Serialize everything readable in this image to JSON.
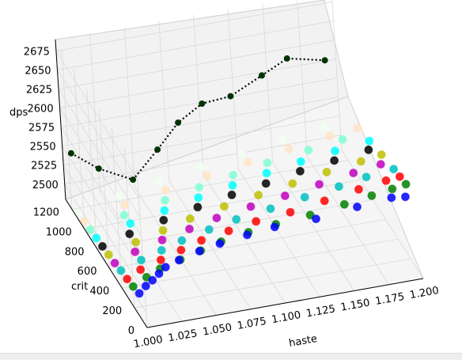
{
  "chart_data": {
    "type": "scatter",
    "projection": "3d",
    "title": "",
    "xlabel": "haste",
    "ylabel": "crit",
    "zlabel": "dps",
    "xlim": [
      1.0,
      1.2
    ],
    "ylim": [
      0,
      1300
    ],
    "zlim": [
      2480,
      2690
    ],
    "x_ticks": [
      "1.000",
      "1.025",
      "1.050",
      "1.075",
      "1.100",
      "1.125",
      "1.150",
      "1.175",
      "1.200"
    ],
    "y_ticks": [
      "0",
      "200",
      "400",
      "600",
      "800",
      "1000",
      "1200"
    ],
    "z_ticks": [
      "2500",
      "2525",
      "2550",
      "2575",
      "2600",
      "2625",
      "2650",
      "2675"
    ],
    "grid": true,
    "legend": "none",
    "colors": [
      "#0000ff",
      "#008000",
      "#ff0000",
      "#00bfbf",
      "#bf00bf",
      "#bfbf00",
      "#000000",
      "#00ffff",
      "#7fffd4",
      "#ffe4c4",
      "#f0fff0"
    ],
    "line_style": "black dotted",
    "series": [
      {
        "color": "#0000ff",
        "crit": 100,
        "haste": [
          1.0,
          1.005,
          1.01,
          1.015,
          1.02,
          1.03,
          1.045,
          1.06,
          1.08,
          1.1,
          1.13,
          1.16,
          1.185,
          1.195
        ],
        "dps": [
          2512,
          2520,
          2526,
          2533,
          2540,
          2546,
          2553,
          2558,
          2563,
          2567,
          2568,
          2574,
          2578,
          2576
        ]
      },
      {
        "color": "#008000",
        "crit": 200,
        "haste": [
          1.0,
          1.01,
          1.02,
          1.035,
          1.05,
          1.065,
          1.085,
          1.105,
          1.13,
          1.155,
          1.175,
          1.19,
          1.2
        ],
        "dps": [
          2508,
          2517,
          2525,
          2532,
          2539,
          2546,
          2552,
          2556,
          2560,
          2566,
          2571,
          2575,
          2578
        ]
      },
      {
        "color": "#ff0000",
        "crit": 300,
        "haste": [
          1.0,
          1.01,
          1.025,
          1.04,
          1.055,
          1.075,
          1.095,
          1.12,
          1.145,
          1.17,
          1.19,
          1.2
        ],
        "dps": [
          2505,
          2514,
          2522,
          2530,
          2538,
          2544,
          2550,
          2554,
          2561,
          2568,
          2573,
          2575
        ]
      },
      {
        "color": "#00bfbf",
        "crit": 400,
        "haste": [
          1.0,
          1.015,
          1.03,
          1.045,
          1.065,
          1.085,
          1.11,
          1.135,
          1.16,
          1.18,
          1.2
        ],
        "dps": [
          2503,
          2512,
          2520,
          2528,
          2536,
          2543,
          2549,
          2556,
          2562,
          2568,
          2572
        ]
      },
      {
        "color": "#bf00bf",
        "crit": 500,
        "haste": [
          1.0,
          1.015,
          1.035,
          1.055,
          1.075,
          1.1,
          1.125,
          1.15,
          1.175,
          1.195
        ],
        "dps": [
          2500,
          2510,
          2519,
          2527,
          2535,
          2542,
          2548,
          2555,
          2562,
          2567
        ]
      },
      {
        "color": "#bfbf00",
        "crit": 600,
        "haste": [
          1.0,
          1.02,
          1.04,
          1.06,
          1.085,
          1.11,
          1.135,
          1.16,
          1.185,
          1.2
        ],
        "dps": [
          2498,
          2508,
          2517,
          2526,
          2534,
          2541,
          2548,
          2555,
          2561,
          2565
        ]
      },
      {
        "color": "#000000",
        "crit": 700,
        "haste": [
          1.0,
          1.02,
          1.045,
          1.07,
          1.095,
          1.12,
          1.145,
          1.17,
          1.195
        ],
        "dps": [
          2496,
          2506,
          2516,
          2525,
          2533,
          2540,
          2548,
          2554,
          2560
        ]
      },
      {
        "color": "#00ffff",
        "crit": 800,
        "haste": [
          1.0,
          1.025,
          1.05,
          1.075,
          1.1,
          1.125,
          1.15,
          1.175,
          1.2
        ],
        "dps": [
          2494,
          2505,
          2514,
          2523,
          2531,
          2539,
          2546,
          2552,
          2557
        ]
      },
      {
        "color": "#7fffd4",
        "crit": 900,
        "haste": [
          1.0,
          1.025,
          1.055,
          1.08,
          1.105,
          1.13,
          1.16,
          1.185
        ],
        "dps": [
          2492,
          2503,
          2513,
          2522,
          2530,
          2538,
          2545,
          2551
        ]
      },
      {
        "color": "#ffe4c4",
        "crit": 1000,
        "haste": [
          1.0,
          1.03,
          1.06,
          1.09,
          1.12,
          1.15,
          1.18,
          1.2
        ],
        "dps": [
          2490,
          2502,
          2512,
          2521,
          2529,
          2537,
          2544,
          2548
        ]
      },
      {
        "color": "#f0fff0",
        "crit": 1100,
        "haste": [
          1.0,
          1.03,
          1.06,
          1.09,
          1.12,
          1.15,
          1.18
        ],
        "dps": [
          2488,
          2500,
          2510,
          2519,
          2528,
          2535,
          2542
        ]
      }
    ],
    "line_path": [
      {
        "haste": 1.0,
        "crit": 1150,
        "dps": 2560
      },
      {
        "haste": 1.015,
        "crit": 1050,
        "dps": 2548
      },
      {
        "haste": 1.035,
        "crit": 950,
        "dps": 2540
      },
      {
        "haste": 1.06,
        "crit": 1100,
        "dps": 2552
      },
      {
        "haste": 1.08,
        "crit": 1200,
        "dps": 2568
      },
      {
        "haste": 1.1,
        "crit": 1250,
        "dps": 2580
      },
      {
        "haste": 1.12,
        "crit": 1230,
        "dps": 2586
      },
      {
        "haste": 1.145,
        "crit": 1270,
        "dps": 2600
      },
      {
        "haste": 1.165,
        "crit": 1300,
        "dps": 2612
      },
      {
        "haste": 1.19,
        "crit": 1250,
        "dps": 2608
      }
    ]
  }
}
